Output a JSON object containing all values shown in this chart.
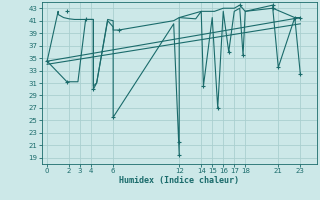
{
  "xlabel": "Humidex (Indice chaleur)",
  "xlim": [
    -0.5,
    24.5
  ],
  "ylim": [
    18,
    44
  ],
  "xticks": [
    0,
    2,
    3,
    4,
    6,
    12,
    14,
    15,
    16,
    17,
    18,
    21,
    23
  ],
  "yticks": [
    19,
    21,
    23,
    25,
    27,
    29,
    31,
    33,
    35,
    37,
    39,
    41,
    43
  ],
  "bg_color": "#cce8e8",
  "grid_color": "#aacfcf",
  "line_color": "#1a6b6b",
  "line0": [
    0.0,
    34.5,
    1.0,
    42.5,
    1.0,
    42.0,
    1.5,
    41.5,
    2.0,
    41.3,
    2.5,
    41.2,
    3.0,
    41.2,
    3.5,
    41.2,
    4.0,
    41.2,
    4.2,
    41.2,
    4.2,
    30.5,
    4.5,
    31.0,
    5.5,
    41.2,
    6.0,
    41.0,
    6.0,
    39.5,
    6.5,
    39.5,
    11.5,
    41.0,
    12.0,
    41.5,
    12.0,
    41.5,
    14.0,
    42.5,
    14.5,
    42.5,
    15.0,
    42.5,
    15.2,
    42.5,
    16.0,
    43.0,
    16.5,
    43.0,
    17.0,
    43.0,
    17.5,
    43.5,
    18.0,
    42.5,
    18.0,
    42.5,
    20.5,
    43.5,
    20.5,
    43.0,
    22.5,
    41.5,
    23.0,
    41.5
  ],
  "line1": [
    0.0,
    34.5,
    1.8,
    31.2,
    2.8,
    31.2,
    3.5,
    41.2,
    4.2,
    41.2,
    4.2,
    30.0,
    4.5,
    31.0,
    5.5,
    41.0,
    6.0,
    40.0,
    6.0,
    25.5,
    11.5,
    40.5,
    12.0,
    19.5,
    12.0,
    41.5,
    13.5,
    41.3,
    14.0,
    42.5,
    14.2,
    30.5,
    15.0,
    41.5,
    15.5,
    27.0,
    16.0,
    42.5,
    16.5,
    36.0,
    17.0,
    42.5,
    17.5,
    43.0,
    17.8,
    35.5,
    18.0,
    42.5,
    20.5,
    43.0,
    21.0,
    33.5,
    22.5,
    41.5,
    23.0,
    32.5
  ],
  "line2": [
    0.0,
    34.5,
    23.0,
    41.5
  ],
  "line3": [
    0.0,
    34.0,
    23.0,
    40.5
  ],
  "markers": [
    [
      0.0,
      34.5
    ],
    [
      1.8,
      31.2
    ],
    [
      4.2,
      30.0
    ],
    [
      6.0,
      25.5
    ],
    [
      12.0,
      19.5
    ],
    [
      12.0,
      21.5
    ],
    [
      14.2,
      30.5
    ],
    [
      15.5,
      27.0
    ],
    [
      16.5,
      36.0
    ],
    [
      17.8,
      35.5
    ],
    [
      20.5,
      43.0
    ],
    [
      21.0,
      33.5
    ],
    [
      23.0,
      32.5
    ],
    [
      1.8,
      42.5
    ],
    [
      3.5,
      41.2
    ],
    [
      6.5,
      39.5
    ],
    [
      17.5,
      43.5
    ],
    [
      20.5,
      43.5
    ],
    [
      22.5,
      41.5
    ],
    [
      23.0,
      41.5
    ]
  ]
}
